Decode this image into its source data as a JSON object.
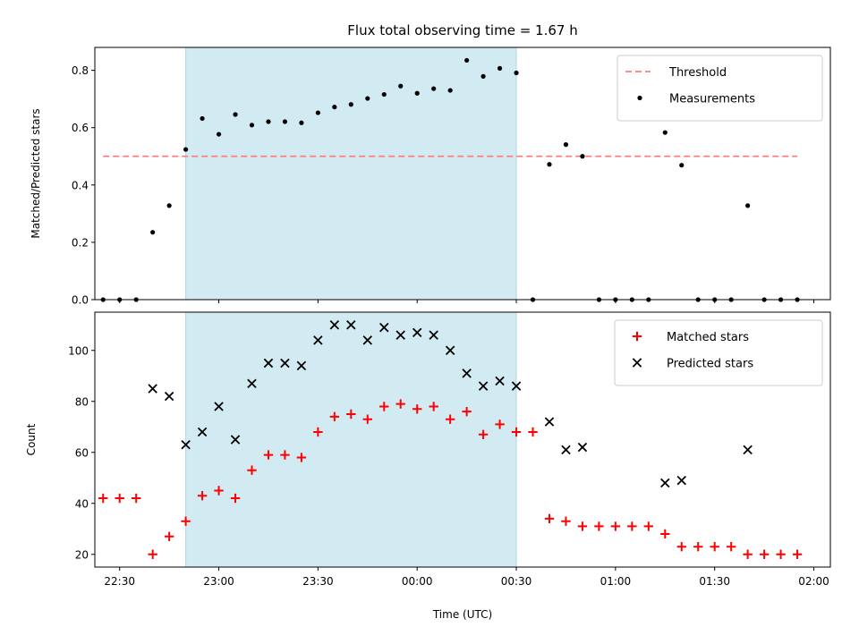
{
  "chart_data": {
    "type": "scatter",
    "title": "Flux total observing time = 1.67 h",
    "xlabel": "Time (UTC)",
    "x_ticks": [
      "22:30",
      "23:00",
      "23:30",
      "00:00",
      "00:30",
      "01:00",
      "01:30",
      "02:00"
    ],
    "x_tick_minutes": [
      0,
      30,
      60,
      90,
      120,
      150,
      180,
      210
    ],
    "x_range_minutes": [
      -7.5,
      215
    ],
    "time_minutes": [
      -5,
      0,
      5,
      10,
      15,
      20,
      25,
      30,
      35,
      40,
      45,
      50,
      55,
      60,
      65,
      70,
      75,
      80,
      85,
      90,
      95,
      100,
      105,
      110,
      115,
      120,
      125,
      130,
      135,
      140,
      145,
      150,
      155,
      160,
      165,
      170,
      175,
      180,
      185,
      190,
      195,
      200,
      205
    ],
    "shaded_span_minutes": [
      20,
      120
    ],
    "shaded_color": "#add8e6",
    "panels": [
      {
        "ylabel": "Matched/Predicted stars",
        "ylim": [
          0,
          0.88
        ],
        "y_ticks": [
          0.0,
          0.2,
          0.4,
          0.6,
          0.8
        ],
        "y_tick_labels": [
          "0.0",
          "0.2",
          "0.4",
          "0.6",
          "0.8"
        ],
        "legend_position": "top-right",
        "threshold": {
          "name": "Threshold",
          "y": 0.5,
          "x_range_minutes": [
            -5,
            205
          ],
          "color": "#ff7f7f"
        },
        "series": [
          {
            "name": "Measurements",
            "marker": "dot",
            "color": "#000000",
            "values": [
              0,
              0,
              0,
              0.235,
              0.328,
              0.524,
              0.632,
              0.577,
              0.646,
              0.609,
              0.621,
              0.621,
              0.617,
              0.652,
              0.672,
              0.681,
              0.702,
              0.716,
              0.745,
              0.72,
              0.736,
              0.73,
              0.835,
              0.779,
              0.807,
              0.791,
              0,
              0.472,
              0.541,
              0.5,
              0,
              0,
              0,
              0,
              0.583,
              0.469,
              0,
              0,
              0,
              0.328,
              0,
              0,
              0
            ]
          }
        ]
      },
      {
        "ylabel": "Count",
        "ylim": [
          15,
          115
        ],
        "y_ticks": [
          20,
          40,
          60,
          80,
          100
        ],
        "y_tick_labels": [
          "20",
          "40",
          "60",
          "80",
          "100"
        ],
        "legend_position": "top-right",
        "series": [
          {
            "name": "Matched stars",
            "marker": "plus",
            "color": "#ff0000",
            "values": [
              42,
              42,
              42,
              20,
              27,
              33,
              43,
              45,
              42,
              53,
              59,
              59,
              58,
              68,
              74,
              75,
              73,
              78,
              79,
              77,
              78,
              73,
              76,
              67,
              71,
              68,
              68,
              34,
              33,
              31,
              31,
              31,
              31,
              31,
              28,
              23,
              23,
              23,
              23,
              20,
              20,
              20,
              20
            ]
          },
          {
            "name": "Predicted stars",
            "marker": "x",
            "color": "#000000",
            "values": [
              null,
              null,
              null,
              85,
              82,
              63,
              68,
              78,
              65,
              87,
              95,
              95,
              94,
              104,
              110,
              110,
              104,
              109,
              106,
              107,
              106,
              100,
              91,
              86,
              88,
              86,
              null,
              72,
              61,
              62,
              null,
              null,
              null,
              null,
              48,
              49,
              null,
              null,
              null,
              61,
              null,
              null,
              null
            ]
          }
        ]
      }
    ]
  }
}
